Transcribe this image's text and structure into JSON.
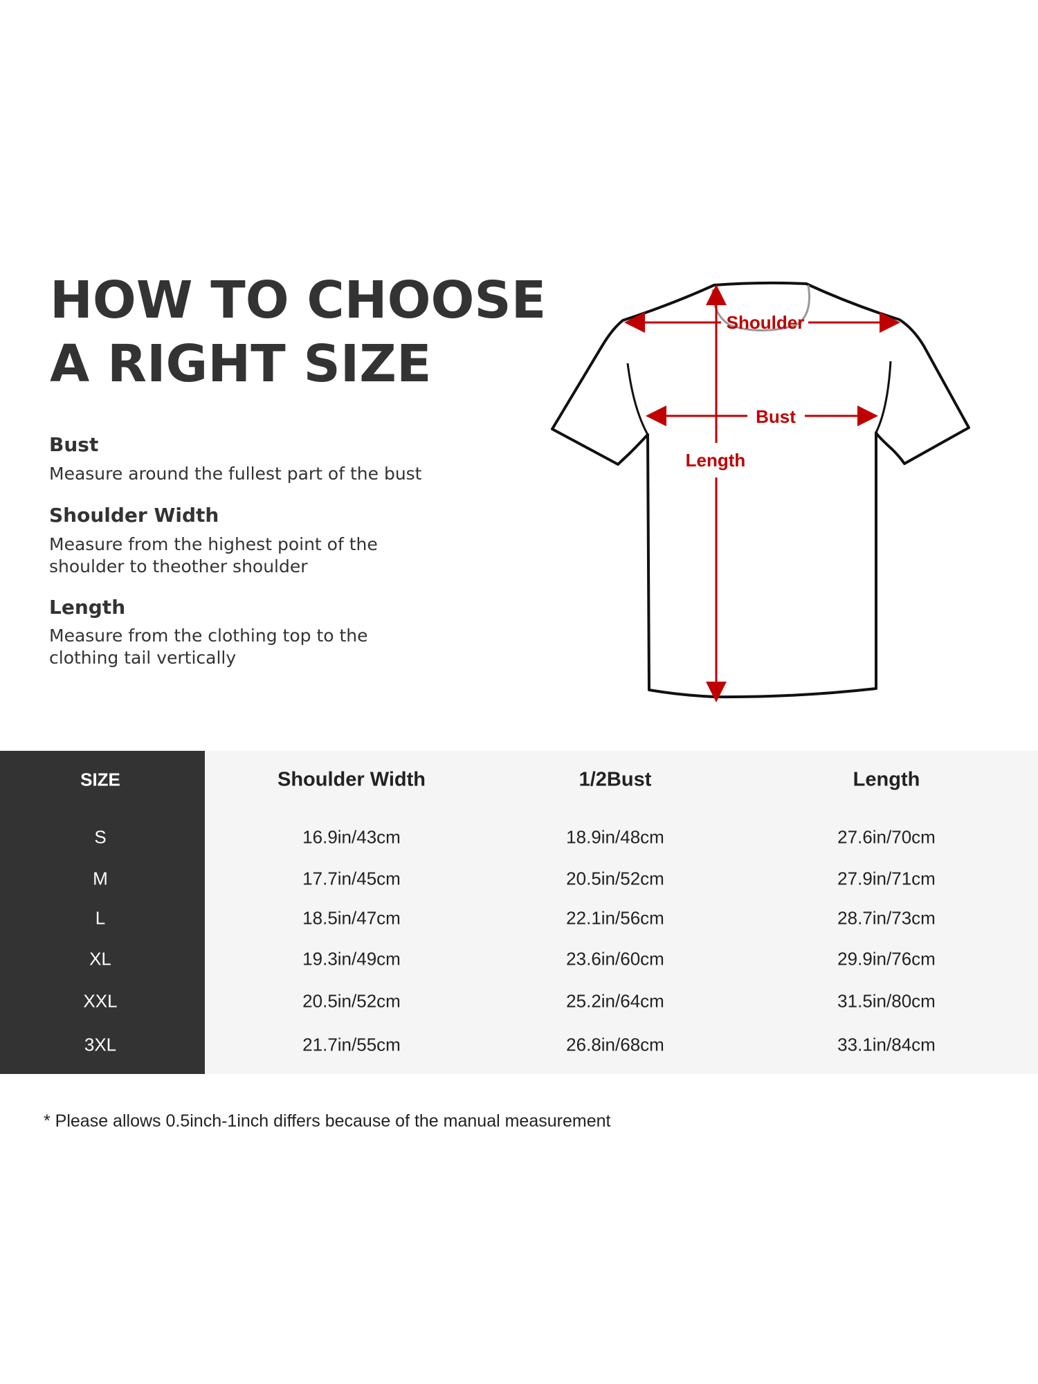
{
  "title": [
    "HOW TO CHOOSE",
    "A RIGHT SIZE"
  ],
  "guide": [
    {
      "heading": "Bust",
      "description": [
        "Measure around the fullest part of the bust"
      ]
    },
    {
      "heading": "Shoulder Width",
      "description": [
        "Measure from the highest point of the",
        "shoulder to theother shoulder"
      ]
    },
    {
      "heading": "Length",
      "description": [
        "Measure from the clothing top to the",
        "clothing tail vertically"
      ]
    }
  ],
  "diagram": {
    "shoulder_label": "Shoulder",
    "bust_label": "Bust",
    "length_label": "Length",
    "arrow_color": "#c00000"
  },
  "table": {
    "headers": [
      "SIZE",
      "Shoulder Width",
      "1/2Bust",
      "Length"
    ],
    "rows": [
      [
        "S",
        "16.9in/43cm",
        "18.9in/48cm",
        "27.6in/70cm"
      ],
      [
        "M",
        "17.7in/45cm",
        "20.5in/52cm",
        "27.9in/71cm"
      ],
      [
        "L",
        "18.5in/47cm",
        "22.1in/56cm",
        "28.7in/73cm"
      ],
      [
        "XL",
        "19.3in/49cm",
        "23.6in/60cm",
        "29.9in/76cm"
      ],
      [
        "XXL",
        "20.5in/52cm",
        "25.2in/64cm",
        "31.5in/80cm"
      ],
      [
        "3XL",
        "21.7in/55cm",
        "26.8in/68cm",
        "33.1in/84cm"
      ]
    ]
  },
  "footnote": "* Please allows 0.5inch-1inch differs because of the  manual measurement"
}
